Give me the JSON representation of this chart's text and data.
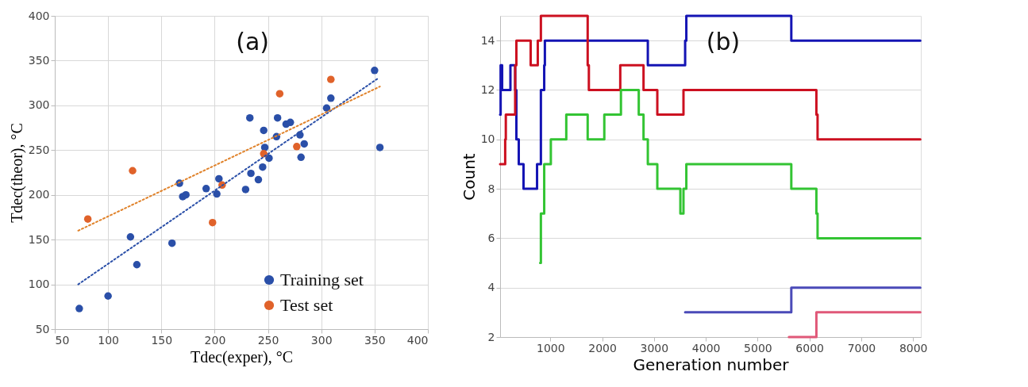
{
  "chart_data": [
    {
      "type": "scatter",
      "title": "(a)",
      "xlabel": "Tdec(exper), °C",
      "ylabel": "Tdec(theor), °C",
      "xlim": [
        50,
        400
      ],
      "ylim": [
        50,
        400
      ],
      "xticks": [
        50,
        100,
        150,
        200,
        250,
        300,
        350,
        400
      ],
      "yticks": [
        50,
        100,
        150,
        200,
        250,
        300,
        350,
        400
      ],
      "grid": true,
      "legend": "bottom right",
      "marker": "circle",
      "series": [
        {
          "name": "Training set",
          "color": "#2a4fa8",
          "x": [
            73,
            100,
            121,
            127,
            160,
            167,
            170,
            173,
            192,
            202,
            204,
            229,
            233,
            234,
            241,
            245,
            246,
            247,
            251,
            258,
            259,
            267,
            271,
            280,
            281,
            284,
            305,
            309,
            350,
            355
          ],
          "values": [
            73,
            87,
            153,
            122,
            146,
            213,
            198,
            200,
            207,
            201,
            218,
            206,
            286,
            224,
            217,
            231,
            272,
            253,
            241,
            265,
            286,
            279,
            281,
            267,
            242,
            257,
            297,
            308,
            339,
            253
          ]
        },
        {
          "name": "Test set",
          "color": "#e0622a",
          "x": [
            81,
            123,
            198,
            207,
            246,
            261,
            277,
            309
          ],
          "values": [
            173,
            227,
            169,
            211,
            246,
            313,
            254,
            329
          ]
        },
        {
          "type": "line",
          "color": "#2a4fa8",
          "line_style": "dotted",
          "marker": "none",
          "x": [
            72,
            353
          ],
          "values": [
            100,
            330
          ]
        },
        {
          "type": "line",
          "color": "#e0822a",
          "line_style": "dotted",
          "marker": "none",
          "x": [
            72,
            355
          ],
          "values": [
            160,
            321
          ]
        }
      ]
    },
    {
      "type": "step",
      "title": "(b)",
      "xlabel": "Generation number",
      "ylabel": "Count",
      "xlim": [
        30,
        8150
      ],
      "ylim": [
        2,
        15
      ],
      "xticks": [
        1000,
        2000,
        3000,
        4000,
        5000,
        6000,
        7000,
        8000
      ],
      "yticks": [
        2,
        4,
        6,
        8,
        10,
        12,
        14
      ],
      "grid": "y",
      "series": [
        {
          "color": "#1414b4",
          "x": [
            30,
            40,
            69,
            229,
            321,
            344,
            390,
            482,
            743,
            817,
            881,
            894,
            2881,
            3601,
            3624,
            5650,
            8140
          ],
          "values": [
            11,
            13,
            12,
            13,
            12,
            10,
            9,
            8,
            9,
            12,
            13,
            14,
            13,
            14,
            15,
            14,
            14
          ]
        },
        {
          "color": "#cc1020",
          "x": [
            30,
            128,
            140,
            321,
            344,
            620,
            757,
            817,
            1720,
            1743,
            2349,
            2798,
            3064,
            3569,
            6134,
            6157,
            8140
          ],
          "values": [
            9,
            10,
            11,
            13,
            14,
            13,
            14,
            15,
            13,
            12,
            13,
            12,
            11,
            12,
            11,
            10,
            10
          ]
        },
        {
          "color": "#33c433",
          "x": [
            803,
            817,
            881,
            1009,
            1307,
            1720,
            2041,
            2362,
            2706,
            2798,
            2881,
            3064,
            3509,
            3569,
            3624,
            5650,
            6134,
            6157,
            8140
          ],
          "values": [
            5,
            7,
            9,
            10,
            11,
            10,
            11,
            12,
            11,
            10,
            9,
            8,
            7,
            8,
            9,
            8,
            7,
            6,
            6
          ]
        },
        {
          "color": "#4a4ab8",
          "x": [
            3601,
            5650,
            8140
          ],
          "values": [
            3,
            4,
            4
          ]
        },
        {
          "color": "#e05878",
          "x": [
            5604,
            6134,
            8140
          ],
          "values": [
            2,
            3,
            3
          ]
        }
      ]
    }
  ]
}
